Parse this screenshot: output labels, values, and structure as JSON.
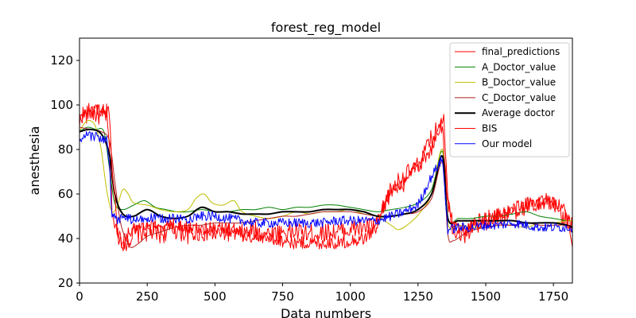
{
  "chart_data": {
    "type": "line",
    "title": "forest_reg_model",
    "xlabel": "Data numbers",
    "ylabel": "anesthesia",
    "xlim": [
      0,
      1820
    ],
    "ylim": [
      20,
      130
    ],
    "xticks": [
      0,
      250,
      500,
      750,
      1000,
      1250,
      1500,
      1750
    ],
    "yticks": [
      20,
      40,
      60,
      80,
      100,
      120
    ],
    "grid": false,
    "legend_position": "top-right",
    "series": [
      {
        "name": "final_predictions",
        "color": "#ff0000",
        "width": 1,
        "points": [
          [
            0,
            94
          ],
          [
            10,
            96
          ],
          [
            20,
            95
          ],
          [
            40,
            97
          ],
          [
            60,
            96
          ],
          [
            80,
            95
          ],
          [
            100,
            96
          ],
          [
            110,
            80
          ],
          [
            120,
            55
          ],
          [
            130,
            45
          ],
          [
            150,
            40
          ],
          [
            170,
            38
          ],
          [
            200,
            42
          ],
          [
            250,
            43
          ],
          [
            300,
            42
          ],
          [
            350,
            44
          ],
          [
            400,
            42
          ],
          [
            450,
            43
          ],
          [
            500,
            42
          ],
          [
            550,
            43
          ],
          [
            600,
            42
          ],
          [
            650,
            43
          ],
          [
            700,
            42
          ],
          [
            750,
            43
          ],
          [
            800,
            43
          ],
          [
            850,
            42
          ],
          [
            900,
            43
          ],
          [
            950,
            43
          ],
          [
            1000,
            44
          ],
          [
            1050,
            45
          ],
          [
            1100,
            46
          ],
          [
            1150,
            62
          ],
          [
            1200,
            68
          ],
          [
            1250,
            72
          ],
          [
            1300,
            85
          ],
          [
            1340,
            92
          ],
          [
            1360,
            56
          ],
          [
            1380,
            45
          ],
          [
            1420,
            42
          ],
          [
            1460,
            46
          ],
          [
            1500,
            48
          ],
          [
            1550,
            50
          ],
          [
            1600,
            52
          ],
          [
            1650,
            55
          ],
          [
            1700,
            57
          ],
          [
            1750,
            55
          ],
          [
            1800,
            48
          ],
          [
            1820,
            45
          ]
        ]
      },
      {
        "name": "A_Doctor_value",
        "color": "#008000",
        "width": 1,
        "points": [
          [
            0,
            88
          ],
          [
            30,
            90
          ],
          [
            60,
            89
          ],
          [
            90,
            88
          ],
          [
            110,
            72
          ],
          [
            130,
            56
          ],
          [
            160,
            53
          ],
          [
            200,
            55
          ],
          [
            240,
            57
          ],
          [
            280,
            54
          ],
          [
            320,
            53
          ],
          [
            360,
            52
          ],
          [
            400,
            52
          ],
          [
            450,
            53
          ],
          [
            500,
            52
          ],
          [
            550,
            52
          ],
          [
            600,
            53
          ],
          [
            650,
            53
          ],
          [
            700,
            54
          ],
          [
            750,
            53
          ],
          [
            800,
            54
          ],
          [
            850,
            54
          ],
          [
            900,
            55
          ],
          [
            950,
            55
          ],
          [
            1000,
            54
          ],
          [
            1050,
            53
          ],
          [
            1100,
            52
          ],
          [
            1150,
            53
          ],
          [
            1200,
            54
          ],
          [
            1250,
            56
          ],
          [
            1300,
            62
          ],
          [
            1340,
            79
          ],
          [
            1360,
            49
          ],
          [
            1400,
            49
          ],
          [
            1450,
            49
          ],
          [
            1500,
            50
          ],
          [
            1550,
            50
          ],
          [
            1600,
            51
          ],
          [
            1650,
            52
          ],
          [
            1700,
            50
          ],
          [
            1750,
            49
          ],
          [
            1800,
            48
          ],
          [
            1820,
            48
          ]
        ]
      },
      {
        "name": "B_Doctor_value",
        "color": "#bfbf00",
        "width": 1,
        "points": [
          [
            0,
            88
          ],
          [
            20,
            92
          ],
          [
            40,
            93
          ],
          [
            60,
            90
          ],
          [
            80,
            80
          ],
          [
            100,
            62
          ],
          [
            120,
            52
          ],
          [
            140,
            55
          ],
          [
            160,
            62
          ],
          [
            180,
            60
          ],
          [
            200,
            56
          ],
          [
            250,
            55
          ],
          [
            300,
            53
          ],
          [
            350,
            52
          ],
          [
            400,
            53
          ],
          [
            430,
            58
          ],
          [
            460,
            60
          ],
          [
            490,
            56
          ],
          [
            530,
            55
          ],
          [
            570,
            57
          ],
          [
            600,
            52
          ],
          [
            650,
            50
          ],
          [
            700,
            49
          ],
          [
            750,
            50
          ],
          [
            800,
            52
          ],
          [
            850,
            51
          ],
          [
            900,
            52
          ],
          [
            950,
            52
          ],
          [
            1000,
            53
          ],
          [
            1050,
            51
          ],
          [
            1100,
            50
          ],
          [
            1150,
            46
          ],
          [
            1180,
            44
          ],
          [
            1220,
            47
          ],
          [
            1260,
            52
          ],
          [
            1300,
            60
          ],
          [
            1340,
            80
          ],
          [
            1360,
            47
          ],
          [
            1400,
            46
          ],
          [
            1450,
            45
          ],
          [
            1500,
            45
          ],
          [
            1550,
            46
          ],
          [
            1600,
            46
          ],
          [
            1650,
            45
          ],
          [
            1700,
            47
          ],
          [
            1750,
            47
          ],
          [
            1800,
            48
          ],
          [
            1820,
            48
          ]
        ]
      },
      {
        "name": "C_Doctor_value",
        "color": "#b22222",
        "width": 1,
        "points": [
          [
            0,
            90
          ],
          [
            40,
            89
          ],
          [
            80,
            88
          ],
          [
            110,
            84
          ],
          [
            130,
            66
          ],
          [
            150,
            48
          ],
          [
            170,
            40
          ],
          [
            190,
            36
          ],
          [
            220,
            38
          ],
          [
            250,
            41
          ],
          [
            300,
            43
          ],
          [
            350,
            45
          ],
          [
            400,
            46
          ],
          [
            450,
            46
          ],
          [
            500,
            47
          ],
          [
            550,
            47
          ],
          [
            600,
            47
          ],
          [
            650,
            48
          ],
          [
            700,
            49
          ],
          [
            750,
            50
          ],
          [
            800,
            50
          ],
          [
            850,
            51
          ],
          [
            900,
            52
          ],
          [
            950,
            52
          ],
          [
            1000,
            52
          ],
          [
            1050,
            51
          ],
          [
            1100,
            50
          ],
          [
            1150,
            50
          ],
          [
            1200,
            51
          ],
          [
            1250,
            52
          ],
          [
            1300,
            58
          ],
          [
            1340,
            74
          ],
          [
            1360,
            42
          ],
          [
            1380,
            39
          ],
          [
            1420,
            42
          ],
          [
            1460,
            44
          ],
          [
            1500,
            45
          ],
          [
            1550,
            46
          ],
          [
            1600,
            46
          ],
          [
            1650,
            47
          ],
          [
            1700,
            46
          ],
          [
            1750,
            46
          ],
          [
            1800,
            46
          ],
          [
            1820,
            45
          ]
        ]
      },
      {
        "name": "Average doctor",
        "color": "#000000",
        "width": 2,
        "points": [
          [
            0,
            88
          ],
          [
            40,
            89
          ],
          [
            80,
            87
          ],
          [
            110,
            78
          ],
          [
            130,
            60
          ],
          [
            160,
            51
          ],
          [
            200,
            50
          ],
          [
            250,
            53
          ],
          [
            300,
            50
          ],
          [
            350,
            49
          ],
          [
            400,
            50
          ],
          [
            450,
            54
          ],
          [
            500,
            52
          ],
          [
            550,
            52
          ],
          [
            600,
            51
          ],
          [
            650,
            51
          ],
          [
            700,
            51
          ],
          [
            750,
            52
          ],
          [
            800,
            52
          ],
          [
            850,
            52
          ],
          [
            900,
            53
          ],
          [
            950,
            53
          ],
          [
            1000,
            53
          ],
          [
            1050,
            52
          ],
          [
            1100,
            50
          ],
          [
            1150,
            50
          ],
          [
            1200,
            51
          ],
          [
            1250,
            53
          ],
          [
            1300,
            60
          ],
          [
            1340,
            77
          ],
          [
            1360,
            49
          ],
          [
            1400,
            48
          ],
          [
            1450,
            48
          ],
          [
            1500,
            48
          ],
          [
            1550,
            48
          ],
          [
            1600,
            48
          ],
          [
            1650,
            47
          ],
          [
            1700,
            47
          ],
          [
            1750,
            47
          ],
          [
            1800,
            46
          ],
          [
            1820,
            45
          ]
        ]
      },
      {
        "name": "BIS",
        "color": "#ff0000",
        "width": 1,
        "points": [
          [
            0,
            92
          ],
          [
            20,
            98
          ],
          [
            60,
            98
          ],
          [
            100,
            97
          ],
          [
            110,
            96
          ],
          [
            120,
            72
          ],
          [
            140,
            44
          ],
          [
            160,
            36
          ],
          [
            180,
            42
          ],
          [
            200,
            44
          ],
          [
            250,
            45
          ],
          [
            300,
            46
          ],
          [
            350,
            46
          ],
          [
            400,
            45
          ],
          [
            450,
            44
          ],
          [
            500,
            45
          ],
          [
            550,
            44
          ],
          [
            600,
            42
          ],
          [
            650,
            40
          ],
          [
            700,
            40
          ],
          [
            750,
            39
          ],
          [
            800,
            38
          ],
          [
            850,
            38
          ],
          [
            900,
            38
          ],
          [
            950,
            38
          ],
          [
            1000,
            39
          ],
          [
            1050,
            40
          ],
          [
            1100,
            45
          ],
          [
            1130,
            58
          ],
          [
            1160,
            62
          ],
          [
            1200,
            64
          ],
          [
            1230,
            70
          ],
          [
            1260,
            74
          ],
          [
            1300,
            80
          ],
          [
            1330,
            90
          ],
          [
            1345,
            94
          ],
          [
            1360,
            58
          ],
          [
            1380,
            46
          ],
          [
            1420,
            44
          ],
          [
            1460,
            46
          ],
          [
            1500,
            49
          ],
          [
            1540,
            50
          ],
          [
            1580,
            52
          ],
          [
            1620,
            53
          ],
          [
            1660,
            55
          ],
          [
            1700,
            56
          ],
          [
            1740,
            56
          ],
          [
            1780,
            55
          ],
          [
            1800,
            50
          ],
          [
            1820,
            36
          ]
        ]
      },
      {
        "name": "Our model",
        "color": "#0000ff",
        "width": 1,
        "points": [
          [
            0,
            82
          ],
          [
            10,
            84
          ],
          [
            20,
            86
          ],
          [
            40,
            86
          ],
          [
            60,
            86
          ],
          [
            80,
            85
          ],
          [
            100,
            84
          ],
          [
            110,
            74
          ],
          [
            120,
            50
          ],
          [
            140,
            48
          ],
          [
            160,
            50
          ],
          [
            200,
            48
          ],
          [
            250,
            49
          ],
          [
            300,
            49
          ],
          [
            350,
            49
          ],
          [
            400,
            49
          ],
          [
            450,
            50
          ],
          [
            500,
            50
          ],
          [
            550,
            49
          ],
          [
            600,
            48
          ],
          [
            650,
            47
          ],
          [
            700,
            47
          ],
          [
            750,
            47
          ],
          [
            800,
            47
          ],
          [
            850,
            47
          ],
          [
            900,
            47
          ],
          [
            950,
            48
          ],
          [
            1000,
            48
          ],
          [
            1050,
            48
          ],
          [
            1100,
            48
          ],
          [
            1150,
            50
          ],
          [
            1200,
            52
          ],
          [
            1250,
            55
          ],
          [
            1300,
            68
          ],
          [
            1340,
            76
          ],
          [
            1360,
            44
          ],
          [
            1400,
            45
          ],
          [
            1450,
            45
          ],
          [
            1500,
            46
          ],
          [
            1550,
            46
          ],
          [
            1600,
            47
          ],
          [
            1650,
            46
          ],
          [
            1700,
            45
          ],
          [
            1750,
            45
          ],
          [
            1800,
            45
          ],
          [
            1820,
            45
          ]
        ]
      }
    ]
  }
}
